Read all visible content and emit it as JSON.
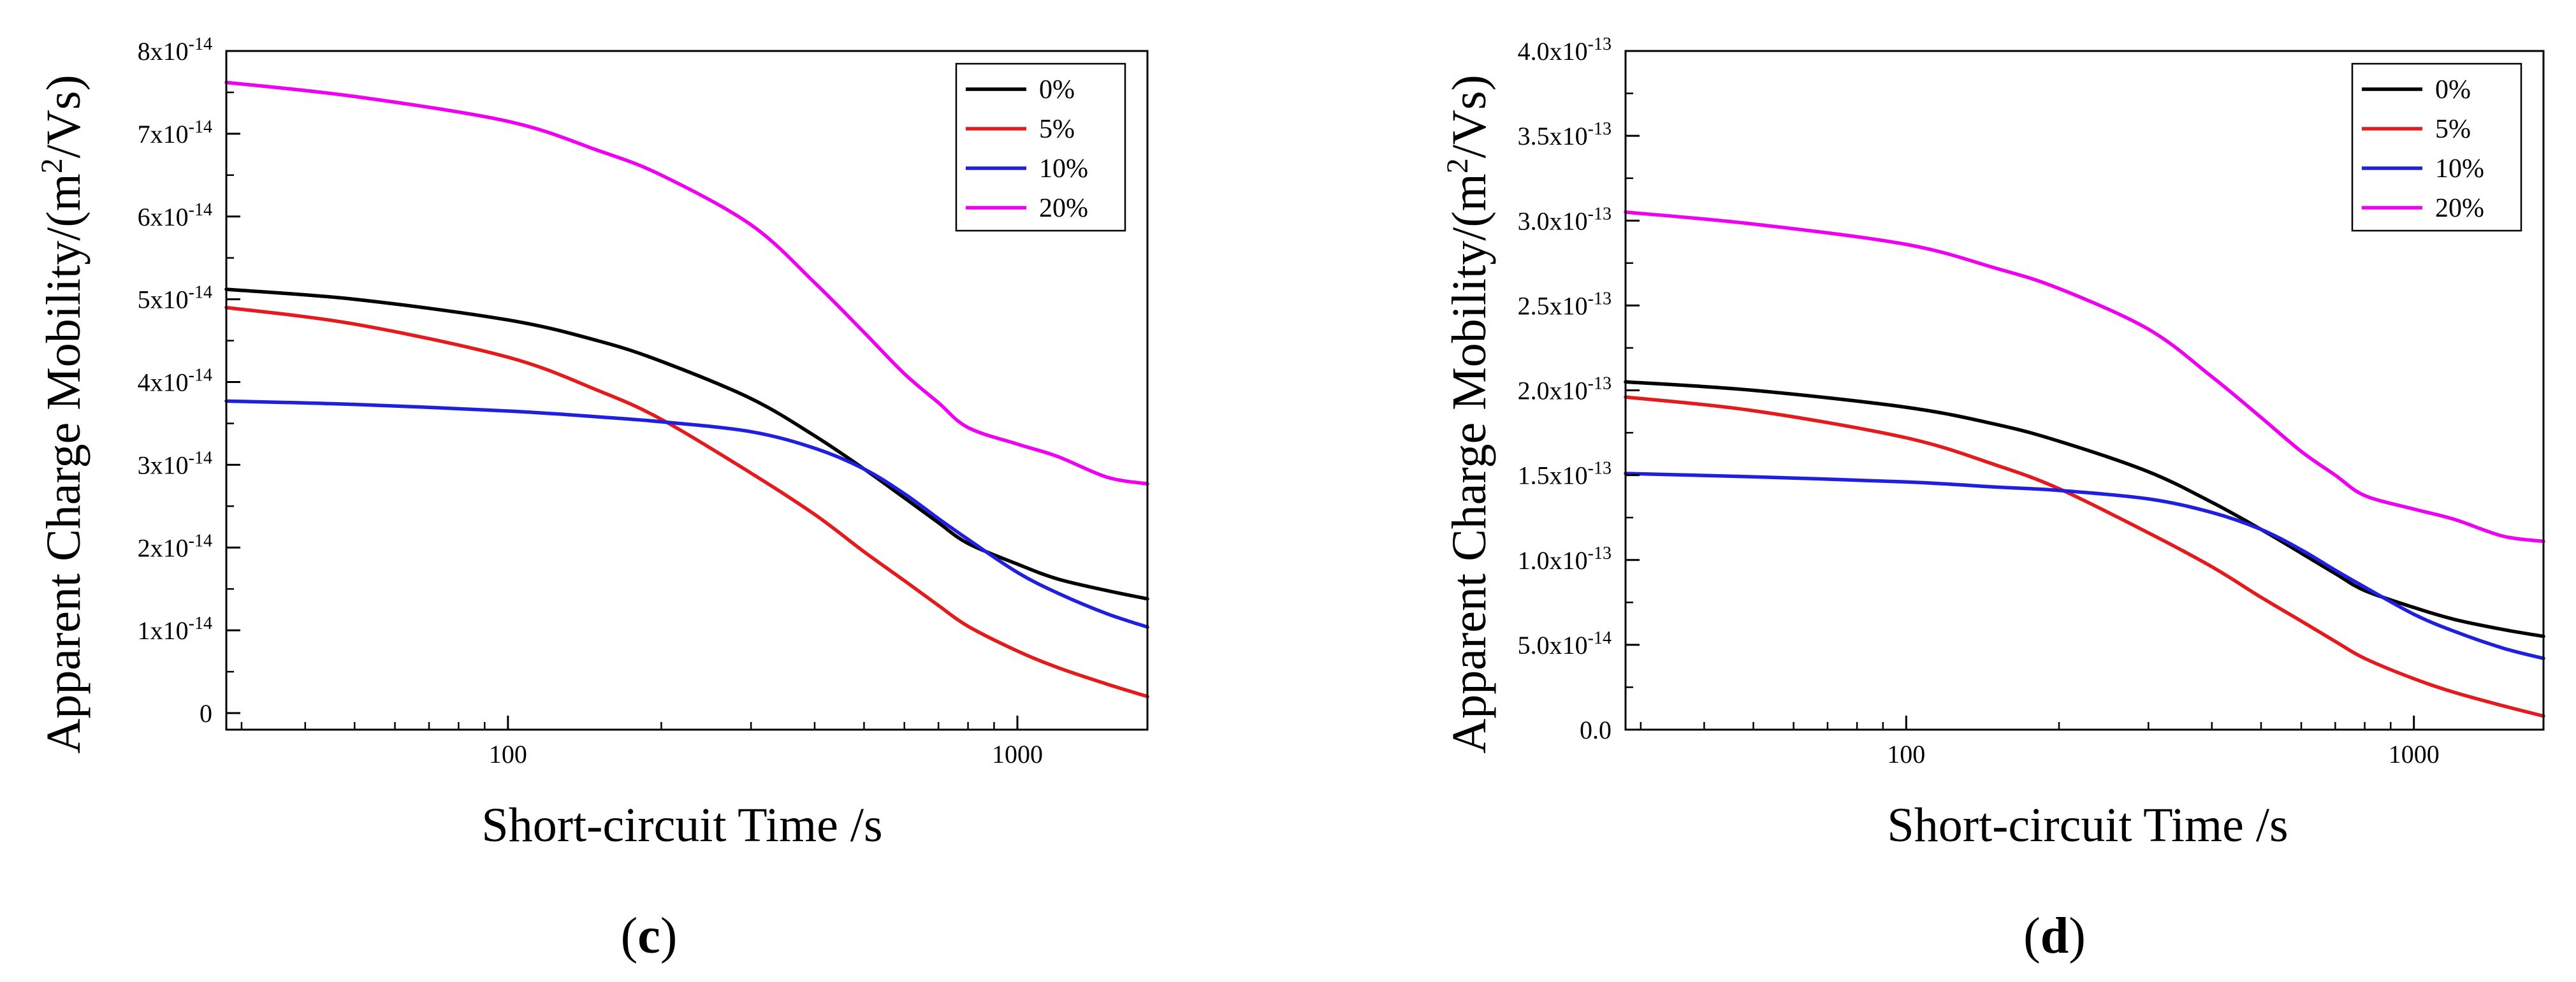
{
  "figure": {
    "panels": [
      {
        "caption_open": "(",
        "caption_letter": "c",
        "caption_close": ")"
      },
      {
        "caption_open": "(",
        "caption_letter": "d",
        "caption_close": ")"
      }
    ]
  },
  "chart_data": [
    {
      "type": "line",
      "panel": "c",
      "xlabel": "Short-circuit Time /s",
      "ylabel": "Apparent Charge Mobility/(m",
      "ylabel_superscript": "2",
      "ylabel_suffix": "/Vs)",
      "x_scale": "log",
      "xlim": [
        28,
        1800
      ],
      "xticks": [
        {
          "value": 100,
          "label": "100"
        },
        {
          "value": 1000,
          "label": "1000"
        }
      ],
      "ylim": [
        -0.2,
        8
      ],
      "yticks": [
        {
          "value": 0,
          "mantissa": "0",
          "exponent": ""
        },
        {
          "value": 1,
          "mantissa": "1x10",
          "exponent": "-14"
        },
        {
          "value": 2,
          "mantissa": "2x10",
          "exponent": "-14"
        },
        {
          "value": 3,
          "mantissa": "3x10",
          "exponent": "-14"
        },
        {
          "value": 4,
          "mantissa": "4x10",
          "exponent": "-14"
        },
        {
          "value": 5,
          "mantissa": "5x10",
          "exponent": "-14"
        },
        {
          "value": 6,
          "mantissa": "6x10",
          "exponent": "-14"
        },
        {
          "value": 7,
          "mantissa": "7x10",
          "exponent": "-14"
        },
        {
          "value": 8,
          "mantissa": "8x10",
          "exponent": "-14"
        }
      ],
      "y_unit": "1e-14 m^2/Vs",
      "legend_position": "top-right",
      "series": [
        {
          "name": "0%",
          "color": "#000000",
          "x": [
            28,
            50,
            100,
            150,
            200,
            300,
            400,
            500,
            600,
            700,
            800,
            1000,
            1200,
            1500,
            1800
          ],
          "y": [
            5.12,
            5.0,
            4.75,
            4.5,
            4.25,
            3.8,
            3.35,
            2.95,
            2.6,
            2.3,
            2.05,
            1.8,
            1.62,
            1.48,
            1.38
          ]
        },
        {
          "name": "5%",
          "color": "#e41a1c",
          "x": [
            28,
            50,
            100,
            150,
            200,
            300,
            400,
            500,
            600,
            700,
            800,
            1000,
            1200,
            1500,
            1800
          ],
          "y": [
            4.9,
            4.7,
            4.3,
            3.9,
            3.55,
            2.9,
            2.4,
            1.95,
            1.6,
            1.3,
            1.05,
            0.75,
            0.55,
            0.35,
            0.2
          ]
        },
        {
          "name": "10%",
          "color": "#1f1fe0",
          "x": [
            28,
            50,
            100,
            150,
            200,
            300,
            400,
            500,
            600,
            700,
            800,
            1000,
            1200,
            1500,
            1800
          ],
          "y": [
            3.77,
            3.73,
            3.65,
            3.58,
            3.52,
            3.4,
            3.2,
            2.95,
            2.65,
            2.35,
            2.1,
            1.7,
            1.45,
            1.2,
            1.04
          ]
        },
        {
          "name": "20%",
          "color": "#f000f0",
          "x": [
            28,
            50,
            100,
            150,
            200,
            300,
            400,
            500,
            600,
            700,
            800,
            1000,
            1200,
            1500,
            1800
          ],
          "y": [
            7.62,
            7.45,
            7.15,
            6.8,
            6.5,
            5.9,
            5.2,
            4.6,
            4.1,
            3.75,
            3.45,
            3.25,
            3.1,
            2.85,
            2.77
          ]
        }
      ]
    },
    {
      "type": "line",
      "panel": "d",
      "xlabel": "Short-circuit Time /s",
      "ylabel": "Apparent Charge Mobility/(m",
      "ylabel_superscript": "2",
      "ylabel_suffix": "/Vs)",
      "x_scale": "log",
      "xlim": [
        28,
        1800
      ],
      "xticks": [
        {
          "value": 100,
          "label": "100"
        },
        {
          "value": 1000,
          "label": "1000"
        }
      ],
      "ylim": [
        0,
        40
      ],
      "yticks": [
        {
          "value": 0,
          "mantissa": "0.0",
          "exponent": ""
        },
        {
          "value": 5,
          "mantissa": "5.0x10",
          "exponent": "-14"
        },
        {
          "value": 10,
          "mantissa": "1.0x10",
          "exponent": "-13"
        },
        {
          "value": 15,
          "mantissa": "1.5x10",
          "exponent": "-13"
        },
        {
          "value": 20,
          "mantissa": "2.0x10",
          "exponent": "-13"
        },
        {
          "value": 25,
          "mantissa": "2.5x10",
          "exponent": "-13"
        },
        {
          "value": 30,
          "mantissa": "3.0x10",
          "exponent": "-13"
        },
        {
          "value": 35,
          "mantissa": "3.5x10",
          "exponent": "-13"
        },
        {
          "value": 40,
          "mantissa": "4.0x10",
          "exponent": "-13"
        }
      ],
      "y_unit": "1e-14 m^2/Vs",
      "legend_position": "top-right",
      "series": [
        {
          "name": "0%",
          "color": "#000000",
          "x": [
            28,
            50,
            100,
            150,
            200,
            300,
            400,
            500,
            600,
            700,
            800,
            1000,
            1200,
            1500,
            1800
          ],
          "y": [
            20.5,
            20.0,
            19.0,
            18.0,
            17.0,
            15.2,
            13.4,
            11.8,
            10.4,
            9.2,
            8.2,
            7.2,
            6.5,
            5.9,
            5.5
          ]
        },
        {
          "name": "5%",
          "color": "#e41a1c",
          "x": [
            28,
            50,
            100,
            150,
            200,
            300,
            400,
            500,
            600,
            700,
            800,
            1000,
            1200,
            1500,
            1800
          ],
          "y": [
            19.6,
            18.8,
            17.2,
            15.6,
            14.2,
            11.6,
            9.6,
            7.8,
            6.4,
            5.2,
            4.2,
            3.0,
            2.2,
            1.4,
            0.8
          ]
        },
        {
          "name": "10%",
          "color": "#1f1fe0",
          "x": [
            28,
            50,
            100,
            150,
            200,
            300,
            400,
            500,
            600,
            700,
            800,
            1000,
            1200,
            1500,
            1800
          ],
          "y": [
            15.1,
            14.9,
            14.6,
            14.3,
            14.1,
            13.6,
            12.8,
            11.8,
            10.6,
            9.4,
            8.4,
            6.8,
            5.8,
            4.8,
            4.2
          ]
        },
        {
          "name": "20%",
          "color": "#f000f0",
          "x": [
            28,
            50,
            100,
            150,
            200,
            300,
            400,
            500,
            600,
            700,
            800,
            1000,
            1200,
            1500,
            1800
          ],
          "y": [
            30.5,
            29.8,
            28.6,
            27.2,
            26.0,
            23.6,
            20.8,
            18.4,
            16.4,
            15.0,
            13.8,
            13.0,
            12.4,
            11.4,
            11.1
          ]
        }
      ]
    }
  ]
}
